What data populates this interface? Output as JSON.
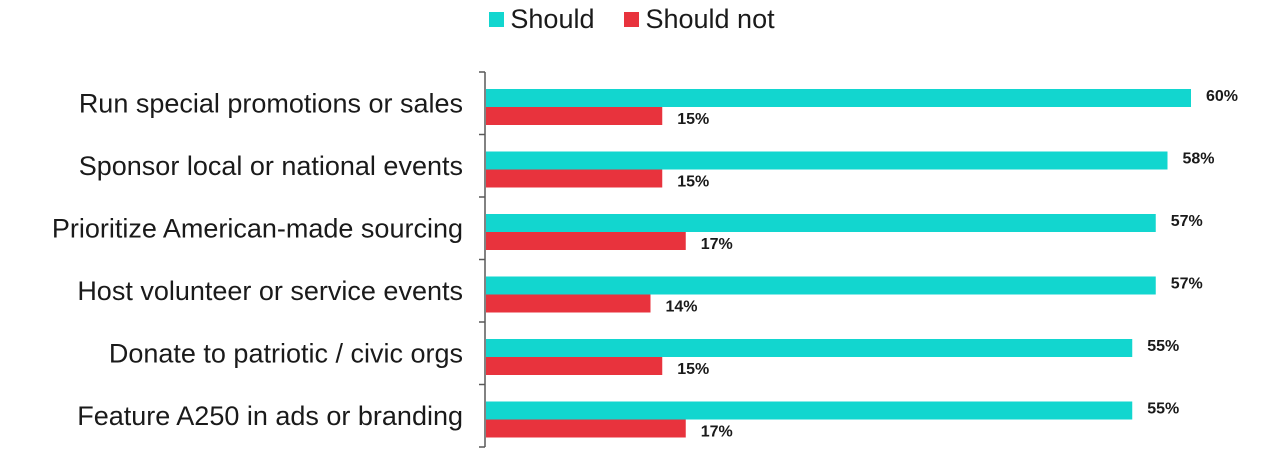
{
  "chart_data": {
    "type": "bar",
    "orientation": "horizontal",
    "categories": [
      "Run special promotions or sales",
      "Sponsor local or national events",
      "Prioritize American-made sourcing",
      "Host volunteer or service events",
      "Donate to patriotic / civic orgs",
      "Feature A250 in ads or branding"
    ],
    "series": [
      {
        "name": "Should",
        "values": [
          60,
          58,
          57,
          57,
          55,
          55
        ],
        "labels": [
          "60%",
          "58%",
          "57%",
          "57%",
          "55%",
          "55%"
        ],
        "color": "#12d6cf"
      },
      {
        "name": "Should not",
        "values": [
          15,
          15,
          17,
          14,
          15,
          17
        ],
        "labels": [
          "15%",
          "15%",
          "17%",
          "14%",
          "15%",
          "17%"
        ],
        "color": "#e8333d"
      }
    ],
    "value_unit": "%",
    "legend_position": "top-center",
    "grid": false
  }
}
